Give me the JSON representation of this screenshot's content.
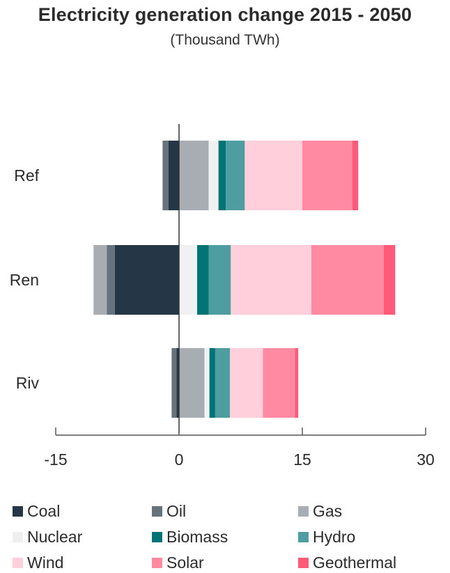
{
  "chart_data": {
    "type": "bar",
    "orientation": "horizontal",
    "stacked": true,
    "title": "Electricity generation change 2015 - 2050",
    "subtitle": "(Thousand TWh)",
    "categories": [
      "Ref",
      "Ren",
      "Riv"
    ],
    "xlim": [
      -15,
      30
    ],
    "xticks": [
      "-15",
      "0",
      "15",
      "30"
    ],
    "xtick_values": [
      -15,
      0,
      15,
      30
    ],
    "legend_placement": "bottom",
    "series": [
      {
        "name": "Coal",
        "color": "#253746",
        "values": [
          -1.3,
          -7.8,
          -0.3
        ]
      },
      {
        "name": "Oil",
        "color": "#66737d",
        "values": [
          -0.7,
          -1.0,
          -0.6
        ]
      },
      {
        "name": "Gas",
        "color": "#a7adb2",
        "values": [
          3.6,
          -1.6,
          3.1
        ]
      },
      {
        "name": "Nuclear",
        "color": "#f0f1f2",
        "values": [
          1.2,
          2.2,
          0.6
        ]
      },
      {
        "name": "Biomass",
        "color": "#007377",
        "values": [
          0.9,
          1.4,
          0.7
        ]
      },
      {
        "name": "Hydro",
        "color": "#4e9ea1",
        "values": [
          2.3,
          2.7,
          1.8
        ]
      },
      {
        "name": "Wind",
        "color": "#ffd0dc",
        "values": [
          7.0,
          9.8,
          4.0
        ]
      },
      {
        "name": "Solar",
        "color": "#ff8aa1",
        "values": [
          6.1,
          8.8,
          3.9
        ]
      },
      {
        "name": "Geothermal",
        "color": "#ff5a7a",
        "values": [
          0.7,
          1.4,
          0.4
        ]
      }
    ]
  }
}
